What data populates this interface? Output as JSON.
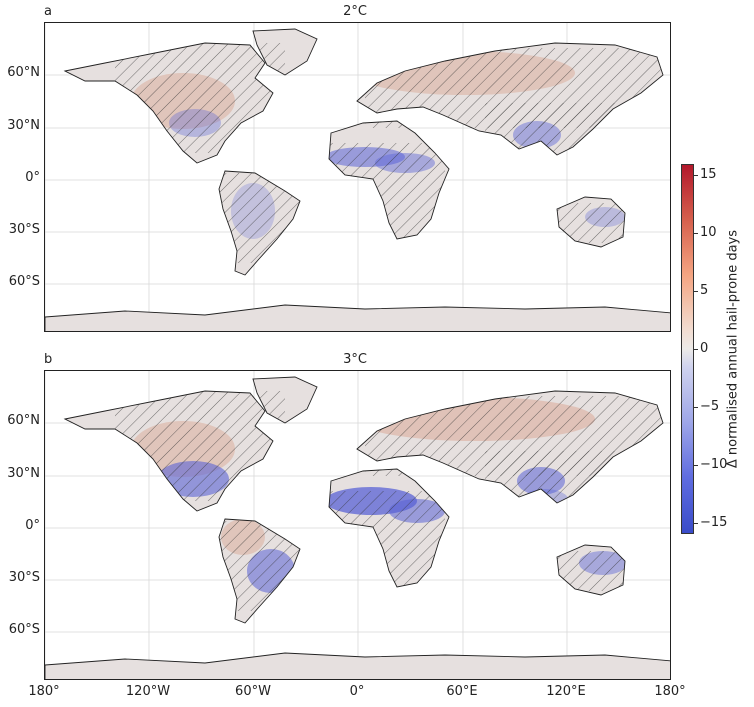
{
  "panels": [
    {
      "letter": "a",
      "title": "2°C"
    },
    {
      "letter": "b",
      "title": "3°C"
    }
  ],
  "lat_labels": [
    "60°N",
    "30°N",
    "0°",
    "30°S",
    "60°S"
  ],
  "lon_labels": [
    "180°",
    "120°W",
    "60°W",
    "0°",
    "60°E",
    "120°E",
    "180°"
  ],
  "colorbar": {
    "label": "Δ normalised annual hail-prone days",
    "ticks": [
      "15",
      "10",
      "5",
      "0",
      "−5",
      "−10",
      "−15"
    ],
    "range": [
      -16,
      16
    ],
    "colormap": [
      "#b2182b",
      "#d6604d",
      "#f4a582",
      "#eceae8",
      "#9ea6e8",
      "#5f6ce0",
      "#3a4cc9"
    ]
  },
  "colors": {
    "land_neutral": "#e6e0df",
    "increase": "#d9a491",
    "decrease": "#5a63d6",
    "coast": "#222222"
  }
}
